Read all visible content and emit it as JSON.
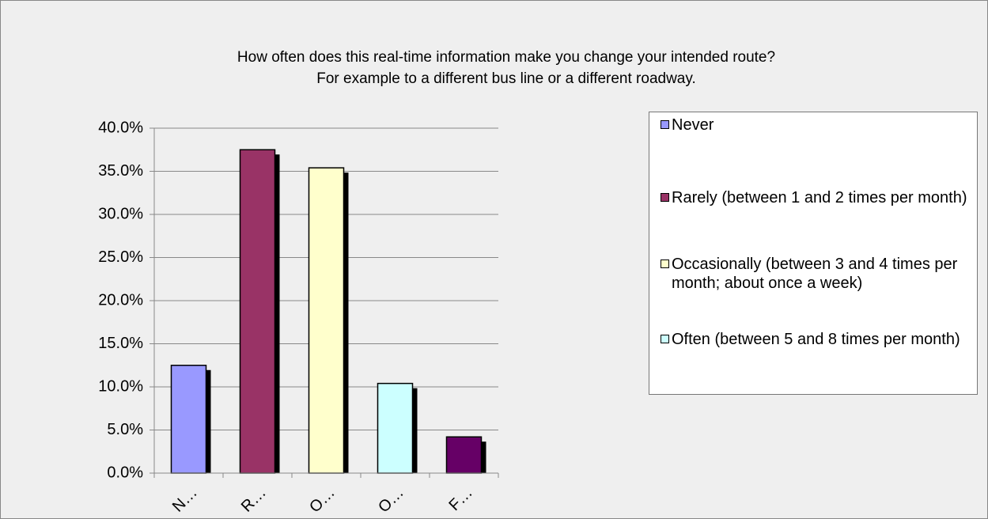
{
  "chart_data": {
    "type": "bar",
    "title": [
      "How often does this real-time information make you change your intended route?",
      "For example to a different bus line or a different roadway."
    ],
    "categories": [
      "N…",
      "R…",
      "O…",
      "O…",
      "F…"
    ],
    "values": [
      12.5,
      37.5,
      35.4,
      10.4,
      4.2
    ],
    "colors": [
      "#9999ff",
      "#993366",
      "#ffffcc",
      "#ccffff",
      "#660066"
    ],
    "legend": [
      "Never",
      "Rarely (between 1 and 2 times per month)",
      "Occasionally (between 3 and 4 times per month; about once a week)",
      "Often (between 5 and 8 times per month)"
    ],
    "ylim": [
      0,
      40
    ],
    "yticks": [
      {
        "value": 0,
        "label": "0.0%"
      },
      {
        "value": 5,
        "label": "5.0%"
      },
      {
        "value": 10,
        "label": "10.0%"
      },
      {
        "value": 15,
        "label": "15.0%"
      },
      {
        "value": 20,
        "label": "20.0%"
      },
      {
        "value": 25,
        "label": "25.0%"
      },
      {
        "value": 30,
        "label": "30.0%"
      },
      {
        "value": 35,
        "label": "35.0%"
      },
      {
        "value": 40,
        "label": "40.0%"
      }
    ],
    "grid": true
  }
}
